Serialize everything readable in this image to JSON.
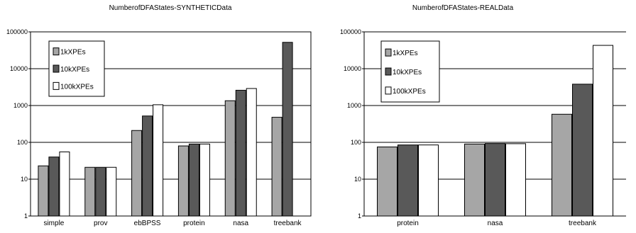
{
  "chart_data": [
    {
      "type": "bar",
      "title": "NumberofDFAStates-SYNTHETICData",
      "xlabel": "",
      "ylabel": "",
      "yscale": "log",
      "ylim": [
        1,
        100000
      ],
      "ytick_labels": [
        "1",
        "10",
        "100",
        "1000",
        "10000",
        "100000"
      ],
      "grid": true,
      "legend_position": "top-left",
      "categories": [
        "simple",
        "prov",
        "ebBPSS",
        "protein",
        "nasa",
        "treebank"
      ],
      "series": [
        {
          "name": "1kXPEs",
          "color": "#a6a6a6",
          "values": [
            23,
            21,
            210,
            80,
            1350,
            480
          ]
        },
        {
          "name": "10kXPEs",
          "color": "#595959",
          "values": [
            40,
            21,
            520,
            90,
            2600,
            52000
          ]
        },
        {
          "name": "100kXPEs",
          "color": "#ffffff",
          "values": [
            55,
            21,
            1050,
            90,
            2900,
            0
          ]
        }
      ]
    },
    {
      "type": "bar",
      "title": "NumberofDFAStates-REALData",
      "xlabel": "",
      "ylabel": "",
      "yscale": "log",
      "ylim": [
        1,
        100000
      ],
      "ytick_labels": [
        "1",
        "10",
        "100",
        "1000",
        "10000",
        "100000"
      ],
      "grid": true,
      "legend_position": "top-left",
      "categories": [
        "protein",
        "nasa",
        "treebank"
      ],
      "series": [
        {
          "name": "1kXPEs",
          "color": "#a6a6a6",
          "values": [
            75,
            90,
            580
          ]
        },
        {
          "name": "10kXPEs",
          "color": "#595959",
          "values": [
            85,
            93,
            3800
          ]
        },
        {
          "name": "100kXPEs",
          "color": "#ffffff",
          "values": [
            85,
            92,
            43000
          ]
        }
      ]
    }
  ]
}
